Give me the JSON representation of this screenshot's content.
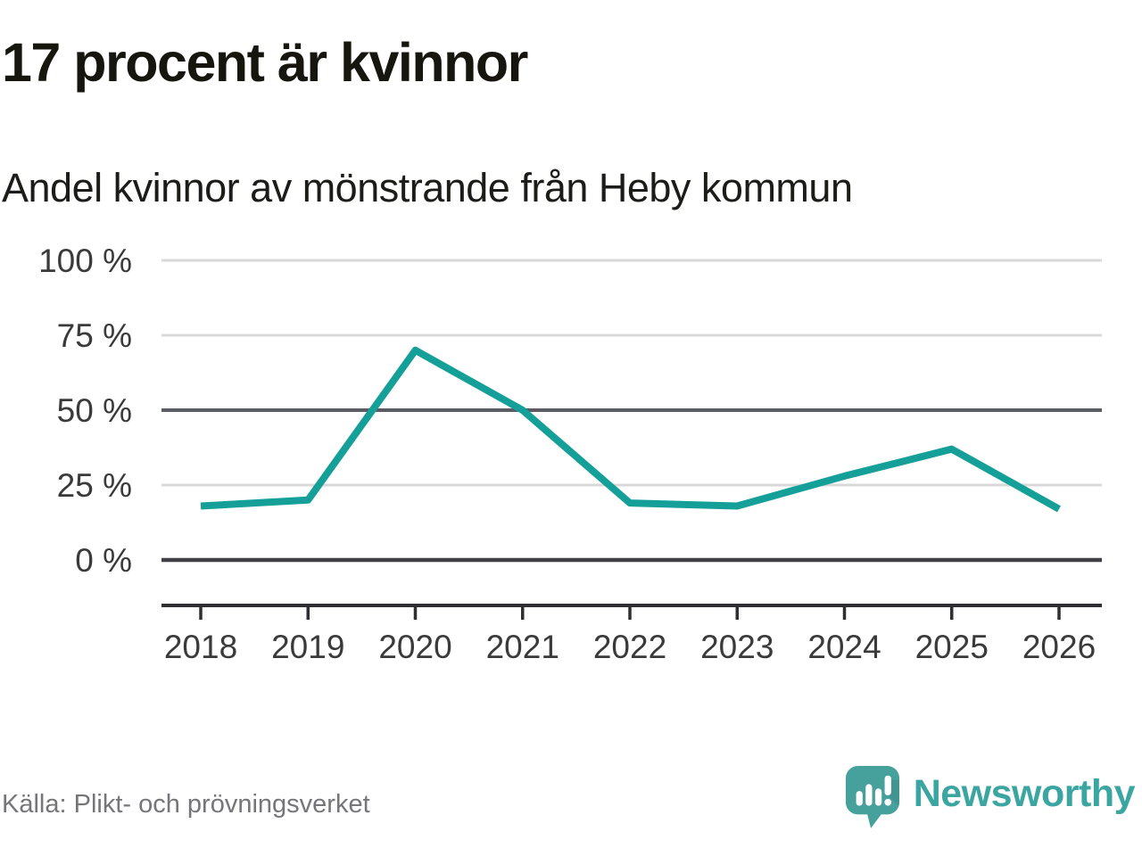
{
  "header": {
    "title": "17 procent är kvinnor",
    "subtitle": "Andel kvinnor av mönstrande från Heby kommun"
  },
  "chart_data": {
    "type": "line",
    "title": "17 procent är kvinnor",
    "subtitle": "Andel kvinnor av mönstrande från Heby kommun",
    "x": [
      2018,
      2019,
      2020,
      2021,
      2022,
      2023,
      2024,
      2025,
      2026
    ],
    "series": [
      {
        "name": "Andel kvinnor av mönstrande",
        "values": [
          18,
          20,
          70,
          50,
          19,
          18,
          28,
          37,
          17
        ],
        "color": "#14A098"
      }
    ],
    "xlabel": "",
    "ylabel": "",
    "ylim": [
      0,
      100
    ],
    "grid": "horizontal",
    "legend": "none",
    "yticks": [
      {
        "value": 100,
        "label": "100 %",
        "style": "light"
      },
      {
        "value": 75,
        "label": "75 %",
        "style": "light"
      },
      {
        "value": 50,
        "label": "50 %",
        "style": "emphasis"
      },
      {
        "value": 25,
        "label": "25 %",
        "style": "light"
      },
      {
        "value": 0,
        "label": "0 %",
        "style": "baseline"
      }
    ],
    "xtick_labels": [
      "2018",
      "2019",
      "2020",
      "2021",
      "2022",
      "2023",
      "2024",
      "2025",
      "2026"
    ]
  },
  "footer": {
    "source": "Källa: Plikt- och prövningsverket",
    "brand": "Newsworthy"
  },
  "colors": {
    "line": "#14A098",
    "grid_light": "#D8D8D8",
    "grid_emphasis": "#5C5C64",
    "grid_baseline": "#3F3F44",
    "axis": "#2F2F33",
    "tick_label": "#3A3A3A",
    "title_text": "#16160F",
    "source_text": "#75757A",
    "logo_bubble": "#46A09B",
    "brand_text": "#3BA5A1"
  },
  "icons": {
    "logo_icon": "bar-chart-exclamation-speech-bubble-icon"
  }
}
